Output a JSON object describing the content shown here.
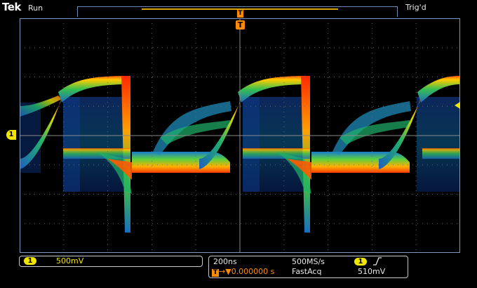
{
  "header": {
    "brand": "Tek",
    "run_state": "Run",
    "trigger_state": "Trig'd"
  },
  "markers": {
    "trigger_symbol": "T",
    "channel_label": "1"
  },
  "channel": {
    "label": "1",
    "volts_per_div": "500mV",
    "color": "#f2e600"
  },
  "horizontal": {
    "time_per_div": "200ns",
    "sample_rate": "500MS/s",
    "position_prefix": "T",
    "position": "0.000000 s",
    "acq_mode": "FastAcq"
  },
  "trigger": {
    "source": "1",
    "edge_icon": "rising-edge-icon",
    "level": "510mV",
    "color": "#ff8c00"
  },
  "colors": {
    "grid": "#808080",
    "background": "#000000"
  }
}
